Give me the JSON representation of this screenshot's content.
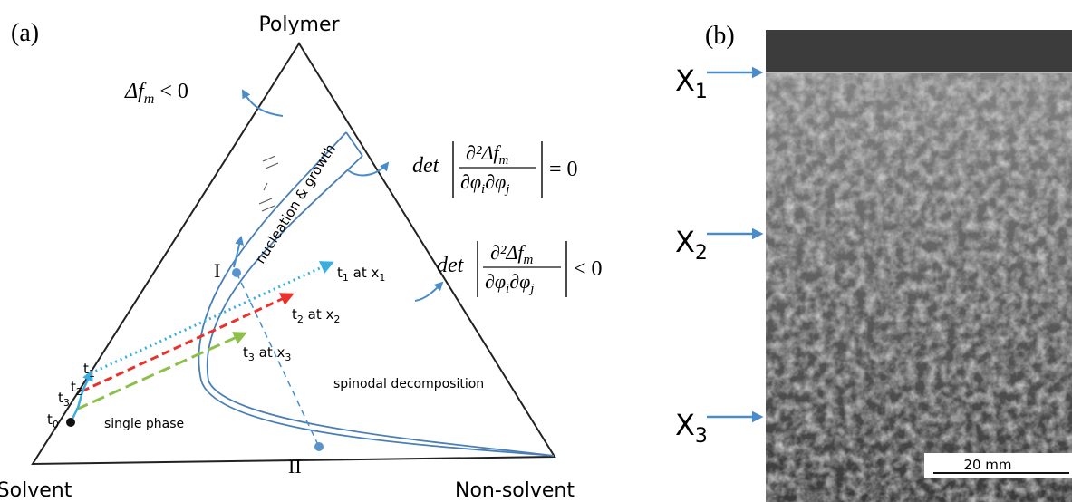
{
  "panel_a": {
    "label": "(a)",
    "vertices": {
      "top": "Polymer",
      "left": "Solvent",
      "right": "Non-solvent"
    },
    "mixing_condition": {
      "base": "Δf",
      "sub": "m",
      "rel": "< 0"
    },
    "binodal": {
      "det": "det",
      "num": "∂²Δf",
      "num_sub": "m",
      "den1": "∂φ",
      "den1_sub": "i",
      "den2": "∂φ",
      "den2_sub": "j",
      "rel": "= 0"
    },
    "spinodal": {
      "det": "det",
      "num": "∂²Δf",
      "num_sub": "m",
      "den1": "∂φ",
      "den1_sub": "i",
      "den2": "∂φ",
      "den2_sub": "j",
      "rel": "< 0"
    },
    "regions": {
      "nucleation": "nucleation & growth",
      "spinodal": "spinodal decomposition",
      "single": "single phase"
    },
    "points": [
      "I",
      "II"
    ],
    "paths": [
      {
        "t": "t",
        "t_sub": "1",
        "at": " at x",
        "x_sub": "1"
      },
      {
        "t": "t",
        "t_sub": "2",
        "at": " at x",
        "x_sub": "2"
      },
      {
        "t": "t",
        "t_sub": "3",
        "at": " at x",
        "x_sub": "3"
      }
    ],
    "times": [
      {
        "t": "t",
        "sub": "1"
      },
      {
        "t": "t",
        "sub": "2"
      },
      {
        "t": "t",
        "sub": "3"
      },
      {
        "t": "t",
        "sub": "0"
      }
    ]
  },
  "panel_b": {
    "label": "(b)",
    "positions": [
      {
        "x": "X",
        "sub": "1"
      },
      {
        "x": "X",
        "sub": "2"
      },
      {
        "x": "X",
        "sub": "3"
      }
    ],
    "scale_bar": "20 mm"
  }
}
